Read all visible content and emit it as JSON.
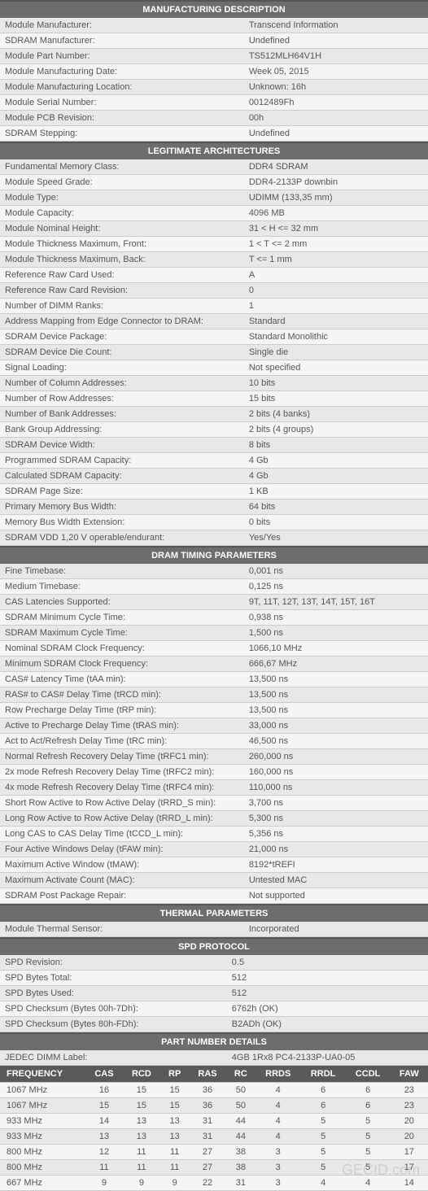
{
  "sections": {
    "manufacturing": {
      "title": "MANUFACTURING DESCRIPTION",
      "rows": [
        {
          "l": "Module Manufacturer:",
          "v": "Transcend Information"
        },
        {
          "l": "SDRAM Manufacturer:",
          "v": "Undefined"
        },
        {
          "l": "Module Part Number:",
          "v": "TS512MLH64V1H"
        },
        {
          "l": "Module Manufacturing Date:",
          "v": "Week 05, 2015"
        },
        {
          "l": "Module Manufacturing Location:",
          "v": "Unknown: 16h"
        },
        {
          "l": "Module Serial Number:",
          "v": "0012489Fh"
        },
        {
          "l": "Module PCB Revision:",
          "v": "00h"
        },
        {
          "l": "SDRAM Stepping:",
          "v": "Undefined"
        }
      ]
    },
    "architectures": {
      "title": "LEGITIMATE ARCHITECTURES",
      "rows": [
        {
          "l": "Fundamental Memory Class:",
          "v": "DDR4 SDRAM"
        },
        {
          "l": "Module Speed Grade:",
          "v": "DDR4-2133P downbin"
        },
        {
          "l": "Module Type:",
          "v": "UDIMM (133,35 mm)"
        },
        {
          "l": "Module Capacity:",
          "v": "4096 MB"
        },
        {
          "l": "Module Nominal Height:",
          "v": "31 < H <= 32 mm"
        },
        {
          "l": "Module Thickness Maximum, Front:",
          "v": "1 < T <= 2 mm"
        },
        {
          "l": "Module Thickness Maximum, Back:",
          "v": "T <= 1 mm"
        },
        {
          "l": "Reference Raw Card Used:",
          "v": "A"
        },
        {
          "l": "Reference Raw Card Revision:",
          "v": "0"
        },
        {
          "l": "Number of DIMM Ranks:",
          "v": "1"
        },
        {
          "l": "Address Mapping from Edge Connector to DRAM:",
          "v": "Standard"
        },
        {
          "l": "SDRAM Device Package:",
          "v": "Standard Monolithic"
        },
        {
          "l": "SDRAM Device Die Count:",
          "v": "Single die"
        },
        {
          "l": "Signal Loading:",
          "v": "Not specified"
        },
        {
          "l": "Number of Column Addresses:",
          "v": "10 bits"
        },
        {
          "l": "Number of Row Addresses:",
          "v": "15 bits"
        },
        {
          "l": "Number of Bank Addresses:",
          "v": "2 bits (4 banks)"
        },
        {
          "l": "Bank Group Addressing:",
          "v": "2 bits (4 groups)"
        },
        {
          "l": "SDRAM Device Width:",
          "v": "8 bits"
        },
        {
          "l": "Programmed SDRAM Capacity:",
          "v": "4 Gb"
        },
        {
          "l": "Calculated SDRAM Capacity:",
          "v": "4 Gb"
        },
        {
          "l": "SDRAM Page Size:",
          "v": "1 KB"
        },
        {
          "l": "Primary Memory Bus Width:",
          "v": "64 bits"
        },
        {
          "l": "Memory Bus Width Extension:",
          "v": "0 bits"
        },
        {
          "l": "SDRAM VDD 1,20 V operable/endurant:",
          "v": "Yes/Yes"
        }
      ]
    },
    "timing": {
      "title": "DRAM TIMING PARAMETERS",
      "rows": [
        {
          "l": "Fine Timebase:",
          "v": "0,001 ns"
        },
        {
          "l": "Medium Timebase:",
          "v": "0,125 ns"
        },
        {
          "l": "CAS Latencies Supported:",
          "v": "9T, 11T, 12T, 13T, 14T, 15T, 16T"
        },
        {
          "l": "SDRAM Minimum Cycle Time:",
          "v": "0,938 ns"
        },
        {
          "l": "SDRAM Maximum Cycle Time:",
          "v": "1,500 ns"
        },
        {
          "l": "Nominal SDRAM Clock Frequency:",
          "v": "1066,10 MHz"
        },
        {
          "l": "Minimum SDRAM Clock Frequency:",
          "v": "666,67 MHz"
        },
        {
          "l": "CAS# Latency Time (tAA min):",
          "v": "13,500 ns"
        },
        {
          "l": "RAS# to CAS# Delay Time (tRCD min):",
          "v": "13,500 ns"
        },
        {
          "l": "Row Precharge Delay Time (tRP min):",
          "v": "13,500 ns"
        },
        {
          "l": "Active to Precharge Delay Time (tRAS min):",
          "v": "33,000 ns"
        },
        {
          "l": "Act to Act/Refresh Delay Time (tRC min):",
          "v": "46,500 ns"
        },
        {
          "l": "Normal Refresh Recovery Delay Time (tRFC1 min):",
          "v": "260,000 ns"
        },
        {
          "l": "2x mode Refresh Recovery Delay Time (tRFC2 min):",
          "v": "160,000 ns"
        },
        {
          "l": "4x mode Refresh Recovery Delay Time (tRFC4 min):",
          "v": "110,000 ns"
        },
        {
          "l": "Short Row Active to Row Active Delay (tRRD_S min):",
          "v": "3,700 ns"
        },
        {
          "l": "Long Row Active to Row Active Delay (tRRD_L min):",
          "v": "5,300 ns"
        },
        {
          "l": "Long CAS to CAS Delay Time (tCCD_L min):",
          "v": "5,356 ns"
        },
        {
          "l": "Four Active Windows Delay (tFAW min):",
          "v": "21,000 ns"
        },
        {
          "l": "Maximum Active Window (tMAW):",
          "v": "8192*tREFI"
        },
        {
          "l": "Maximum Activate Count (MAC):",
          "v": "Untested MAC"
        },
        {
          "l": "SDRAM Post Package Repair:",
          "v": "Not supported"
        }
      ]
    },
    "thermal": {
      "title": "THERMAL PARAMETERS",
      "rows": [
        {
          "l": "Module Thermal Sensor:",
          "v": "Incorporated"
        }
      ]
    },
    "spd": {
      "title": "SPD PROTOCOL",
      "rows": [
        {
          "l": "SPD Revision:",
          "v": "0.5"
        },
        {
          "l": "SPD Bytes Total:",
          "v": "512"
        },
        {
          "l": "SPD Bytes Used:",
          "v": "512"
        },
        {
          "l": "SPD Checksum (Bytes 00h-7Dh):",
          "v": "6762h (OK)"
        },
        {
          "l": "SPD Checksum (Bytes 80h-FDh):",
          "v": "B2ADh (OK)"
        }
      ]
    },
    "part": {
      "title": "PART NUMBER DETAILS",
      "rows": [
        {
          "l": "JEDEC DIMM Label:",
          "v": "4GB 1Rx8 PC4-2133P-UA0-05"
        }
      ]
    }
  },
  "freq": {
    "headers": [
      "FREQUENCY",
      "CAS",
      "RCD",
      "RP",
      "RAS",
      "RC",
      "RRDS",
      "RRDL",
      "CCDL",
      "FAW"
    ],
    "rows": [
      [
        "1067 MHz",
        "16",
        "15",
        "15",
        "36",
        "50",
        "4",
        "6",
        "6",
        "23"
      ],
      [
        "1067 MHz",
        "15",
        "15",
        "15",
        "36",
        "50",
        "4",
        "6",
        "6",
        "23"
      ],
      [
        "933 MHz",
        "14",
        "13",
        "13",
        "31",
        "44",
        "4",
        "5",
        "5",
        "20"
      ],
      [
        "933 MHz",
        "13",
        "13",
        "13",
        "31",
        "44",
        "4",
        "5",
        "5",
        "20"
      ],
      [
        "800 MHz",
        "12",
        "11",
        "11",
        "27",
        "38",
        "3",
        "5",
        "5",
        "17"
      ],
      [
        "800 MHz",
        "11",
        "11",
        "11",
        "27",
        "38",
        "3",
        "5",
        "5",
        "17"
      ],
      [
        "667 MHz",
        "9",
        "9",
        "9",
        "22",
        "31",
        "3",
        "4",
        "4",
        "14"
      ]
    ]
  },
  "watermark": "GECID.com"
}
